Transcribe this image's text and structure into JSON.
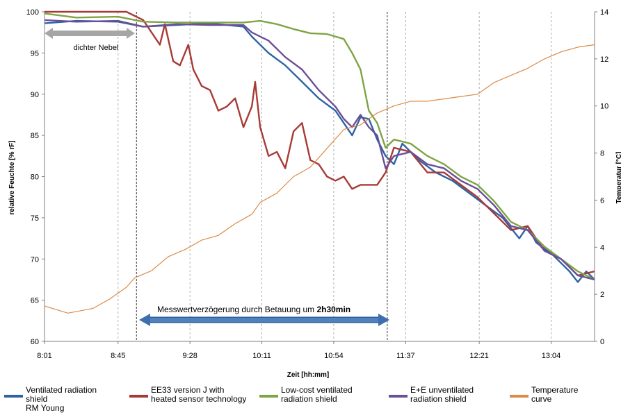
{
  "chart_data": {
    "type": "line",
    "xlabel": "Zeit [hh:mm]",
    "ylabel": "relative Feuchte [% rF]",
    "y2label": "Temperatur [°C]",
    "x_ticks": [
      "8:01",
      "8:45",
      "9:28",
      "10:11",
      "10:54",
      "11:37",
      "12:21",
      "13:04"
    ],
    "xlim": [
      "8:01",
      "13:30"
    ],
    "ylim": [
      60,
      100
    ],
    "y_ticks": [
      60,
      65,
      70,
      75,
      80,
      85,
      90,
      95,
      100
    ],
    "y2lim": [
      0,
      14
    ],
    "y2_ticks": [
      0,
      2,
      4,
      6,
      8,
      10,
      12,
      14
    ],
    "grid": "vertical dashed",
    "legend_position": "bottom",
    "annotations": {
      "fog": "dichter Nebel",
      "delay_text": "Messwertverzögerung durch Betauung um ",
      "delay_bold": "2h30min"
    },
    "series": [
      {
        "name": "Ventilated radiation shield RM Young",
        "legend_label": "Ventilated radiation\nshield\nRM Young",
        "color": "#2e63a3",
        "axis": "left",
        "points": [
          [
            "8:01",
            98.6
          ],
          [
            "8:20",
            98.9
          ],
          [
            "8:45",
            98.8
          ],
          [
            "9:00",
            98.2
          ],
          [
            "9:20",
            98.4
          ],
          [
            "9:40",
            98.6
          ],
          [
            "10:00",
            98.2
          ],
          [
            "10:05",
            97.0
          ],
          [
            "10:15",
            95.0
          ],
          [
            "10:25",
            93.5
          ],
          [
            "10:35",
            91.5
          ],
          [
            "10:45",
            89.5
          ],
          [
            "10:55",
            88.0
          ],
          [
            "11:00",
            86.5
          ],
          [
            "11:05",
            85.0
          ],
          [
            "11:10",
            87.2
          ],
          [
            "11:15",
            87.0
          ],
          [
            "11:20",
            84.5
          ],
          [
            "11:25",
            82.5
          ],
          [
            "11:30",
            81.5
          ],
          [
            "11:35",
            84.0
          ],
          [
            "11:45",
            82.0
          ],
          [
            "11:55",
            80.5
          ],
          [
            "12:05",
            79.5
          ],
          [
            "12:15",
            78.0
          ],
          [
            "12:25",
            76.5
          ],
          [
            "12:35",
            75.0
          ],
          [
            "12:45",
            72.5
          ],
          [
            "12:50",
            74.0
          ],
          [
            "12:55",
            72.0
          ],
          [
            "13:05",
            70.5
          ],
          [
            "13:15",
            68.5
          ],
          [
            "13:20",
            67.2
          ],
          [
            "13:25",
            68.5
          ],
          [
            "13:30",
            67.5
          ]
        ]
      },
      {
        "name": "EE33 version J with heated sensor technology",
        "legend_label": "EE33 version J with\nheated sensor technology",
        "color": "#a83a36",
        "axis": "left",
        "points": [
          [
            "8:01",
            100
          ],
          [
            "8:50",
            100
          ],
          [
            "9:00",
            99.0
          ],
          [
            "9:05",
            97.5
          ],
          [
            "9:10",
            96.0
          ],
          [
            "9:13",
            98.5
          ],
          [
            "9:18",
            94.0
          ],
          [
            "9:22",
            93.5
          ],
          [
            "9:27",
            96.0
          ],
          [
            "9:30",
            93.0
          ],
          [
            "9:35",
            91.0
          ],
          [
            "9:40",
            90.5
          ],
          [
            "9:45",
            88.0
          ],
          [
            "9:50",
            88.5
          ],
          [
            "9:55",
            89.5
          ],
          [
            "10:00",
            86.0
          ],
          [
            "10:05",
            88.5
          ],
          [
            "10:07",
            91.5
          ],
          [
            "10:10",
            86.0
          ],
          [
            "10:15",
            82.5
          ],
          [
            "10:20",
            83.0
          ],
          [
            "10:25",
            81.0
          ],
          [
            "10:30",
            85.5
          ],
          [
            "10:35",
            86.5
          ],
          [
            "10:40",
            82.0
          ],
          [
            "10:45",
            81.5
          ],
          [
            "10:50",
            80.0
          ],
          [
            "10:55",
            79.5
          ],
          [
            "11:00",
            80.0
          ],
          [
            "11:05",
            78.5
          ],
          [
            "11:10",
            79.0
          ],
          [
            "11:20",
            79.0
          ],
          [
            "11:25",
            80.5
          ],
          [
            "11:30",
            83.5
          ],
          [
            "11:40",
            83.0
          ],
          [
            "11:50",
            80.5
          ],
          [
            "12:00",
            80.5
          ],
          [
            "12:10",
            79.0
          ],
          [
            "12:20",
            77.5
          ],
          [
            "12:30",
            75.5
          ],
          [
            "12:40",
            73.5
          ],
          [
            "12:50",
            74.0
          ],
          [
            "13:00",
            71.0
          ],
          [
            "13:10",
            70.0
          ],
          [
            "13:20",
            68.0
          ],
          [
            "13:30",
            68.5
          ]
        ]
      },
      {
        "name": "Low-cost ventilated radiation shield",
        "legend_label": "Low-cost ventilated\nradiation shield",
        "color": "#7ea444",
        "axis": "left",
        "points": [
          [
            "8:01",
            99.8
          ],
          [
            "8:20",
            99.3
          ],
          [
            "8:45",
            99.4
          ],
          [
            "9:00",
            98.8
          ],
          [
            "9:20",
            98.7
          ],
          [
            "9:40",
            98.7
          ],
          [
            "10:00",
            98.7
          ],
          [
            "10:10",
            98.9
          ],
          [
            "10:20",
            98.5
          ],
          [
            "10:30",
            97.9
          ],
          [
            "10:40",
            97.4
          ],
          [
            "10:50",
            97.3
          ],
          [
            "11:00",
            96.7
          ],
          [
            "11:05",
            95.0
          ],
          [
            "11:10",
            93.0
          ],
          [
            "11:15",
            88.0
          ],
          [
            "11:20",
            86.5
          ],
          [
            "11:25",
            83.5
          ],
          [
            "11:30",
            84.5
          ],
          [
            "11:40",
            84.0
          ],
          [
            "11:50",
            82.5
          ],
          [
            "12:00",
            81.5
          ],
          [
            "12:10",
            80.0
          ],
          [
            "12:20",
            79.0
          ],
          [
            "12:30",
            77.0
          ],
          [
            "12:40",
            74.5
          ],
          [
            "12:50",
            73.5
          ],
          [
            "13:00",
            71.5
          ],
          [
            "13:10",
            70.0
          ],
          [
            "13:20",
            68.5
          ],
          [
            "13:30",
            67.5
          ]
        ]
      },
      {
        "name": "E+E unventilated radiation shield",
        "legend_label": "E+E unventilated\nradiation shield",
        "color": "#6b4f97",
        "axis": "left",
        "points": [
          [
            "8:01",
            99.0
          ],
          [
            "8:20",
            98.8
          ],
          [
            "8:45",
            98.9
          ],
          [
            "9:00",
            98.2
          ],
          [
            "9:20",
            98.5
          ],
          [
            "9:40",
            98.4
          ],
          [
            "10:00",
            98.4
          ],
          [
            "10:05",
            97.5
          ],
          [
            "10:15",
            96.5
          ],
          [
            "10:25",
            94.5
          ],
          [
            "10:35",
            93.0
          ],
          [
            "10:45",
            90.5
          ],
          [
            "10:55",
            88.5
          ],
          [
            "11:00",
            87.0
          ],
          [
            "11:05",
            86.0
          ],
          [
            "11:10",
            87.5
          ],
          [
            "11:15",
            86.0
          ],
          [
            "11:20",
            85.0
          ],
          [
            "11:25",
            81.0
          ],
          [
            "11:30",
            82.5
          ],
          [
            "11:40",
            83.0
          ],
          [
            "11:50",
            81.5
          ],
          [
            "12:00",
            81.0
          ],
          [
            "12:10",
            79.5
          ],
          [
            "12:20",
            78.5
          ],
          [
            "12:30",
            76.5
          ],
          [
            "12:40",
            74.0
          ],
          [
            "12:50",
            73.5
          ],
          [
            "13:00",
            71.0
          ],
          [
            "13:10",
            70.0
          ],
          [
            "13:20",
            68.0
          ],
          [
            "13:30",
            67.5
          ]
        ]
      },
      {
        "name": "Temperature curve",
        "legend_label": "Temperature\ncurve",
        "color": "#dc8a45",
        "axis": "right",
        "points": [
          [
            "8:01",
            1.5
          ],
          [
            "8:15",
            1.2
          ],
          [
            "8:30",
            1.4
          ],
          [
            "8:40",
            1.8
          ],
          [
            "8:50",
            2.3
          ],
          [
            "8:55",
            2.7
          ],
          [
            "9:05",
            3.0
          ],
          [
            "9:15",
            3.6
          ],
          [
            "9:25",
            3.9
          ],
          [
            "9:35",
            4.3
          ],
          [
            "9:45",
            4.5
          ],
          [
            "9:55",
            5.0
          ],
          [
            "10:05",
            5.4
          ],
          [
            "10:10",
            5.9
          ],
          [
            "10:20",
            6.3
          ],
          [
            "10:30",
            7.0
          ],
          [
            "10:40",
            7.4
          ],
          [
            "10:50",
            8.2
          ],
          [
            "11:00",
            9.0
          ],
          [
            "11:10",
            9.2
          ],
          [
            "11:20",
            9.7
          ],
          [
            "11:30",
            10.0
          ],
          [
            "11:40",
            10.2
          ],
          [
            "11:50",
            10.2
          ],
          [
            "12:00",
            10.3
          ],
          [
            "12:10",
            10.4
          ],
          [
            "12:20",
            10.5
          ],
          [
            "12:30",
            11.0
          ],
          [
            "12:40",
            11.3
          ],
          [
            "12:50",
            11.6
          ],
          [
            "13:00",
            12.0
          ],
          [
            "13:10",
            12.3
          ],
          [
            "13:20",
            12.5
          ],
          [
            "13:30",
            12.6
          ]
        ]
      }
    ]
  }
}
